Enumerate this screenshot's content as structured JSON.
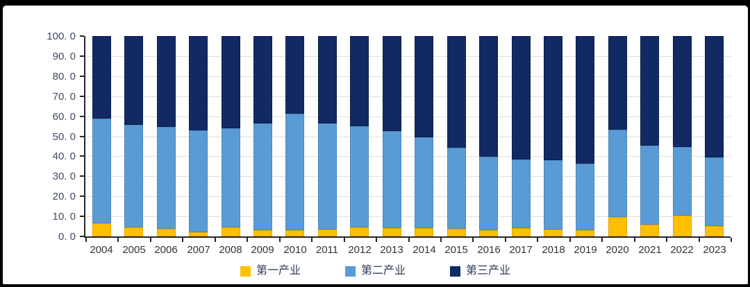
{
  "frame": {
    "border_color": "#000000",
    "panel_background": "#ffffff"
  },
  "axis_colors": {
    "gridline": "#DEDEDE",
    "axis_line": "#262626",
    "y_label_text": "#3D4A63",
    "x_label_text": "#333333",
    "legend_text": "#2C3A58"
  },
  "chart_data": {
    "type": "bar",
    "subtype": "stacked-100-percent-column",
    "title": "",
    "xlabel": "",
    "ylabel": "",
    "grid": true,
    "legend_position": "bottom-center",
    "ylim": [
      0,
      100
    ],
    "ytick_labels": [
      "100. 0",
      "90. 0",
      "80. 0",
      "70. 0",
      "60. 0",
      "50. 0",
      "40. 0",
      "30. 0",
      "20. 0",
      "10. 0",
      "0. 0"
    ],
    "categories": [
      "2004",
      "2005",
      "2006",
      "2007",
      "2008",
      "2009",
      "2010",
      "2011",
      "2012",
      "2013",
      "2014",
      "2015",
      "2016",
      "2017",
      "2018",
      "2019",
      "2020",
      "2021",
      "2022",
      "2023"
    ],
    "series": [
      {
        "name": "第一产业",
        "color": "#FFC000",
        "border_color": "#DFA700",
        "values": [
          6.5,
          4.4,
          3.8,
          2.2,
          4.5,
          3.2,
          3.0,
          3.4,
          4.6,
          4.0,
          4.0,
          3.8,
          3.1,
          4.0,
          3.5,
          3.2,
          9.6,
          5.8,
          10.3,
          5.2
        ]
      },
      {
        "name": "第二产业",
        "color": "#5B9BD5",
        "border_color": "#4A87BF",
        "values": [
          52.4,
          51.3,
          50.8,
          50.6,
          49.5,
          53.1,
          58.1,
          52.9,
          50.3,
          48.5,
          45.6,
          40.4,
          36.7,
          34.4,
          34.7,
          33.0,
          43.8,
          39.5,
          34.5,
          34.1
        ]
      },
      {
        "name": "第三产业",
        "color": "#122A64",
        "border_color": "#0C1D47",
        "values": [
          41.1,
          44.3,
          45.4,
          47.2,
          46.0,
          43.7,
          38.9,
          43.7,
          45.1,
          47.5,
          50.4,
          55.8,
          60.2,
          61.6,
          61.8,
          63.8,
          46.6,
          54.7,
          55.2,
          60.7
        ]
      }
    ]
  }
}
